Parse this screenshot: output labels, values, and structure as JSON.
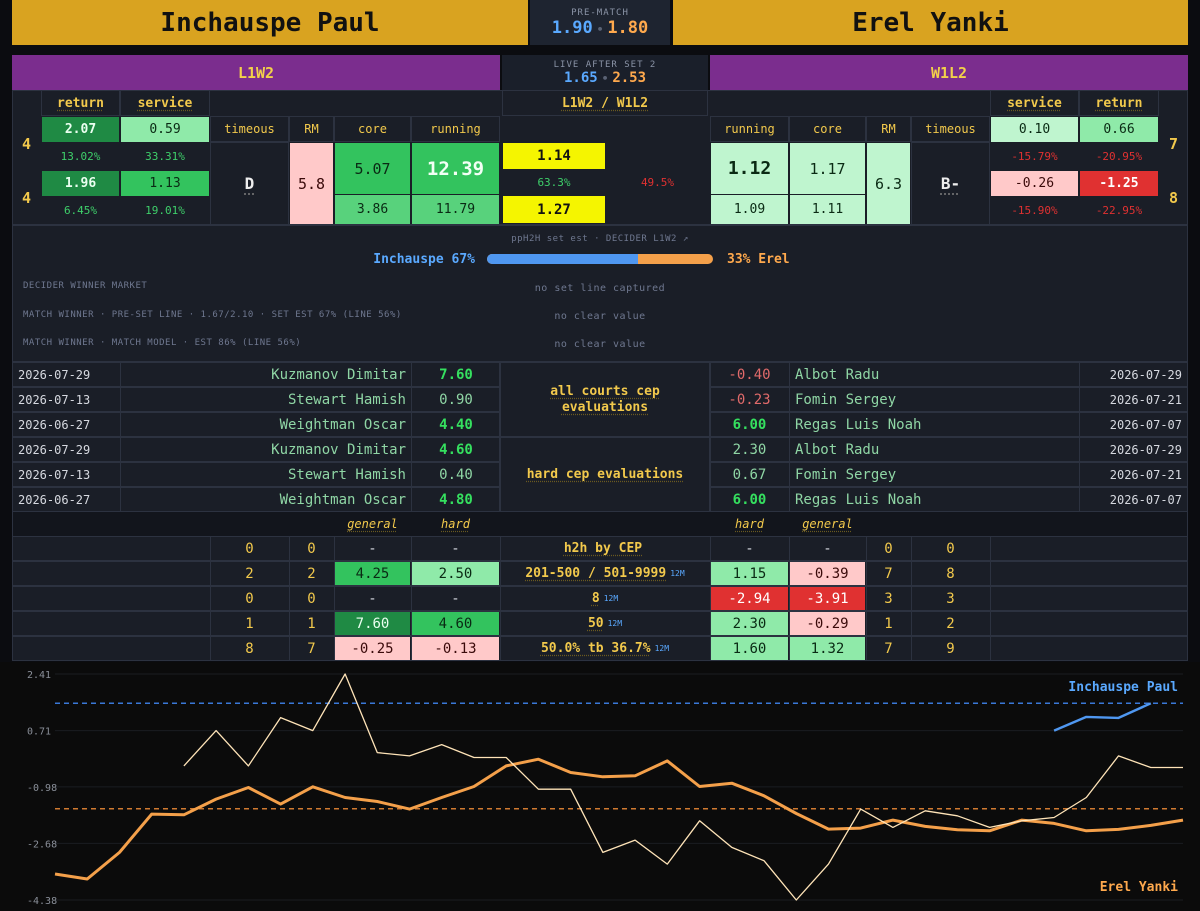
{
  "header": {
    "player_left": "Inchauspe Paul",
    "player_right": "Erel Yanki",
    "prematch_label": "PRE-MATCH",
    "prematch_left": "1.90",
    "prematch_right": "1.80",
    "dot": "•"
  },
  "live": {
    "label": "LIVE AFTER SET 2",
    "left": "1.65",
    "right": "2.53",
    "pattern_left": "L1W2",
    "pattern_right": "W1L2",
    "pattern_mid": "L1W2 / W1L2"
  },
  "stats": {
    "cols": {
      "return": "return",
      "service": "service",
      "timeous": "timeous",
      "rm": "RM",
      "core": "core",
      "running": "running"
    },
    "left": {
      "row_a_num": "4",
      "row_b_num": "4",
      "return_a": "2.07",
      "service_a": "0.59",
      "return_a_pct": "13.02%",
      "service_a_pct": "33.31%",
      "return_b": "1.96",
      "service_b": "1.13",
      "return_b_pct": "6.45%",
      "service_b_pct": "19.01%",
      "timeous": "D",
      "rm": "5.8",
      "core_a": "5.07",
      "running_a": "12.39",
      "core_b": "3.86",
      "running_b": "11.79"
    },
    "mid": {
      "a": "1.14",
      "pct_a": "63.3%",
      "pct_b": "49.5%",
      "b": "1.27"
    },
    "right": {
      "row_a_num": "7",
      "row_b_num": "8",
      "service_a": "0.10",
      "return_a": "0.66",
      "service_a_pct": "-15.79%",
      "return_a_pct": "-20.95%",
      "service_b": "-0.26",
      "return_b": "-1.25",
      "service_b_pct": "-15.90%",
      "return_b_pct": "-22.95%",
      "timeous": "B-",
      "rm": "6.3",
      "running_a": "1.12",
      "core_a": "1.17",
      "running_b": "1.09",
      "core_b": "1.11"
    }
  },
  "decider": {
    "title": "ppH2H set est · DECIDER L1W2 ↗",
    "left_label": "Inchauspe 67%",
    "right_label": "33% Erel",
    "left_pct": 67,
    "rows": [
      {
        "label": "DECIDER WINNER MARKET",
        "value": "no set line captured"
      },
      {
        "label": "MATCH WINNER · PRE-SET LINE · 1.67/2.10 · SET EST 67% (LINE 56%)",
        "value": "no clear value"
      },
      {
        "label": "MATCH WINNER · MATCH MODEL · EST 86% (LINE 56%)",
        "value": "no clear value"
      }
    ]
  },
  "cep": {
    "all_label": "all courts cep evaluations",
    "hard_label": "hard cep evaluations",
    "left": [
      {
        "date": "2026-07-29",
        "name": "Kuzmanov Dimitar",
        "val": "7.60"
      },
      {
        "date": "2026-07-13",
        "name": "Stewart Hamish",
        "val": "0.90"
      },
      {
        "date": "2026-06-27",
        "name": "Weightman Oscar",
        "val": "4.40"
      },
      {
        "date": "2026-07-29",
        "name": "Kuzmanov Dimitar",
        "val": "4.60"
      },
      {
        "date": "2026-07-13",
        "name": "Stewart Hamish",
        "val": "0.40"
      },
      {
        "date": "2026-06-27",
        "name": "Weightman Oscar",
        "val": "4.80"
      }
    ],
    "right": [
      {
        "val": "-0.40",
        "name": "Albot Radu",
        "date": "2026-07-29"
      },
      {
        "val": "-0.23",
        "name": "Fomin Sergey",
        "date": "2026-07-21"
      },
      {
        "val": "6.00",
        "name": "Regas Luis Noah",
        "date": "2026-07-07"
      },
      {
        "val": "2.30",
        "name": "Albot Radu",
        "date": "2026-07-29"
      },
      {
        "val": "0.67",
        "name": "Fomin Sergey",
        "date": "2026-07-21"
      },
      {
        "val": "6.00",
        "name": "Regas Luis Noah",
        "date": "2026-07-07"
      }
    ]
  },
  "h2h": {
    "general": "general",
    "hard": "hard",
    "rows": [
      {
        "la": "0",
        "lb": "0",
        "lg": "-",
        "lh": "-",
        "label": "h2h by CEP",
        "m12": "",
        "rh": "-",
        "rg": "-",
        "ra": "0",
        "rb": "0"
      },
      {
        "la": "2",
        "lb": "2",
        "lg": "4.25",
        "lh": "2.50",
        "label": "201-500 / 501-9999",
        "m12": "12M",
        "rh": "1.15",
        "rg": "-0.39",
        "ra": "7",
        "rb": "8"
      },
      {
        "la": "0",
        "lb": "0",
        "lg": "-",
        "lh": "-",
        "label": "8",
        "m12": "12M",
        "rh": "-2.94",
        "rg": "-3.91",
        "ra": "3",
        "rb": "3"
      },
      {
        "la": "1",
        "lb": "1",
        "lg": "7.60",
        "lh": "4.60",
        "label": "50",
        "m12": "12M",
        "rh": "2.30",
        "rg": "-0.29",
        "ra": "1",
        "rb": "2"
      },
      {
        "la": "8",
        "lb": "7",
        "lg": "-0.25",
        "lh": "-0.13",
        "label": "50.0% tb 36.7%",
        "m12": "12M",
        "rh": "1.60",
        "rg": "1.32",
        "ra": "7",
        "rb": "9"
      }
    ]
  },
  "chart_data": {
    "type": "line",
    "yticks": [
      "2.41",
      "0.71",
      "-0.98",
      "-2.68",
      "-4.38"
    ],
    "ylim": [
      -4.38,
      2.41
    ],
    "legend_left": "Inchauspe Paul",
    "legend_right": "Erel Yanki",
    "ref_lines": [
      {
        "color": "#3a78d8",
        "value": 1.53
      },
      {
        "color": "#d07a30",
        "value": -1.64
      }
    ],
    "series": [
      {
        "color": "#f4a04a",
        "width": 3,
        "values": [
          -3.6,
          -3.75,
          -2.95,
          -1.8,
          -1.82,
          -1.35,
          -1.0,
          -1.5,
          -0.98,
          -1.3,
          -1.42,
          -1.65,
          -1.3,
          -0.97,
          -0.35,
          -0.15,
          -0.55,
          -0.68,
          -0.65,
          -0.2,
          -0.97,
          -0.87,
          -1.25,
          -1.78,
          -2.25,
          -2.22,
          -1.98,
          -2.17,
          -2.27,
          -2.3,
          -1.98,
          -2.08,
          -2.3,
          -2.26,
          -2.14,
          -1.98
        ]
      },
      {
        "color": "#ffe4b8",
        "width": 1.3,
        "values": [
          null,
          null,
          null,
          null,
          -0.35,
          0.71,
          -0.35,
          1.1,
          0.71,
          2.41,
          0.05,
          -0.05,
          0.29,
          -0.1,
          -0.1,
          -1.05,
          -1.05,
          -2.95,
          -2.58,
          -3.3,
          -2.0,
          -2.8,
          -3.2,
          -4.38,
          -3.3,
          -1.65,
          -2.2,
          -1.7,
          -1.85,
          -2.2,
          -2.0,
          -1.9,
          -1.3,
          -0.05,
          -0.4,
          -0.4
        ]
      },
      {
        "color": "#4f97f0",
        "width": 2.4,
        "values": [
          null,
          null,
          null,
          null,
          null,
          null,
          null,
          null,
          null,
          null,
          null,
          null,
          null,
          null,
          null,
          null,
          null,
          null,
          null,
          null,
          null,
          null,
          null,
          null,
          null,
          null,
          null,
          null,
          null,
          null,
          null,
          0.71,
          1.12,
          1.09,
          1.53,
          null
        ]
      }
    ]
  }
}
